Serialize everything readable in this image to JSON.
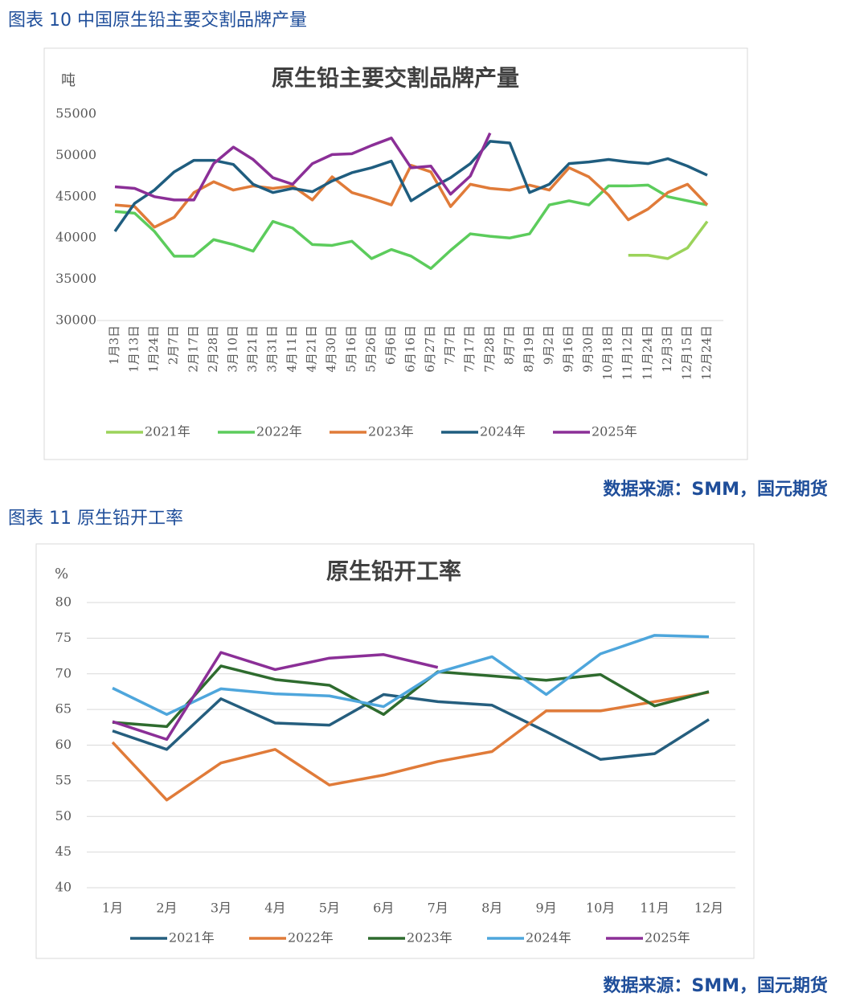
{
  "headings": [
    "图表 10 中国原生铅主要交割品牌产量",
    "图表 11 原生铅开工率"
  ],
  "sources": [
    "数据来源：SMM，国元期货",
    "数据来源：SMM，国元期货"
  ],
  "chart_data": [
    {
      "type": "line",
      "title": "原生铅主要交割品牌产量",
      "y_unit": "吨",
      "categories": [
        "1月3日",
        "1月13日",
        "1月24日",
        "2月7日",
        "2月17日",
        "2月28日",
        "3月10日",
        "3月21日",
        "3月31日",
        "4月11日",
        "4月21日",
        "4月30日",
        "5月16日",
        "5月26日",
        "6月6日",
        "6月16日",
        "6月27日",
        "7月7日",
        "7月17日",
        "7月28日",
        "8月7日",
        "8月19日",
        "9月2日",
        "9月16日",
        "9月30日",
        "10月18日",
        "11月12日",
        "11月24日",
        "12月3日",
        "12月15日",
        "12月24日"
      ],
      "series": [
        {
          "name": "2021年",
          "color": "#9bd35a",
          "values": [
            null,
            null,
            null,
            null,
            null,
            null,
            null,
            null,
            null,
            null,
            null,
            null,
            null,
            null,
            null,
            null,
            null,
            null,
            null,
            null,
            null,
            null,
            null,
            null,
            null,
            null,
            37900,
            37900,
            37500,
            38800,
            42000
          ]
        },
        {
          "name": "2022年",
          "color": "#5ccc5c",
          "values": [
            43200,
            43000,
            40800,
            37800,
            37800,
            39800,
            39200,
            38400,
            42000,
            41200,
            39200,
            39100,
            39600,
            37500,
            38600,
            37800,
            36300,
            38500,
            40500,
            40200,
            40000,
            40500,
            44000,
            44500,
            44000,
            46300,
            46300,
            46400,
            45000,
            44500,
            44000
          ]
        },
        {
          "name": "2023年",
          "color": "#e07b39",
          "values": [
            44000,
            43800,
            41300,
            42500,
            45500,
            46800,
            45800,
            46300,
            46000,
            46300,
            44600,
            47400,
            45500,
            44800,
            44000,
            48800,
            48000,
            43800,
            46500,
            46000,
            45800,
            46400,
            45800,
            48500,
            47400,
            45200,
            42200,
            43500,
            45500,
            46500,
            44000
          ]
        },
        {
          "name": "2024年",
          "color": "#1f5d7f",
          "values": [
            40800,
            44200,
            45800,
            48000,
            49400,
            49400,
            48900,
            46500,
            45500,
            46000,
            45600,
            46900,
            47900,
            48500,
            49300,
            44500,
            46000,
            47300,
            49000,
            51700,
            51500,
            45500,
            46500,
            49000,
            49200,
            49500,
            49200,
            49000,
            49600,
            48700,
            47600
          ]
        },
        {
          "name": "2025年",
          "color": "#8b2f97",
          "values": [
            46200,
            46000,
            45000,
            44600,
            44600,
            49000,
            51000,
            49500,
            47300,
            46500,
            49000,
            50100,
            50200,
            51200,
            52100,
            48500,
            48700,
            45300,
            47500,
            52700,
            null,
            null,
            null,
            null,
            null,
            null,
            null,
            null,
            null,
            null,
            null
          ]
        }
      ],
      "ylim": [
        30000,
        55000
      ],
      "yticks": [
        30000,
        35000,
        40000,
        45000,
        50000,
        55000
      ],
      "grid": false,
      "legend": "bottom"
    },
    {
      "type": "line",
      "title": "原生铅开工率",
      "y_unit": "%",
      "categories": [
        "1月",
        "2月",
        "3月",
        "4月",
        "5月",
        "6月",
        "7月",
        "8月",
        "9月",
        "10月",
        "11月",
        "12月"
      ],
      "series": [
        {
          "name": "2021年",
          "color": "#255e7e",
          "values": [
            62,
            59.4,
            66.5,
            63.1,
            62.8,
            67.1,
            66.1,
            65.6,
            61.9,
            58,
            58.8,
            63.6
          ]
        },
        {
          "name": "2022年",
          "color": "#e07b39",
          "values": [
            60.4,
            52.3,
            57.5,
            59.4,
            54.4,
            55.8,
            57.7,
            59.1,
            64.8,
            64.8,
            66.1,
            67.4
          ]
        },
        {
          "name": "2023年",
          "color": "#2e6b2e",
          "values": [
            63.2,
            62.6,
            71.1,
            69.2,
            68.4,
            64.3,
            70.3,
            69.7,
            69.1,
            69.9,
            65.5,
            67.5
          ]
        },
        {
          "name": "2024年",
          "color": "#4ea6dc",
          "values": [
            68,
            64.3,
            67.9,
            67.2,
            66.9,
            65.4,
            70.2,
            72.4,
            67.1,
            72.8,
            75.4,
            75.2
          ]
        },
        {
          "name": "2025年",
          "color": "#8b2f97",
          "values": [
            63.3,
            60.8,
            73,
            70.6,
            72.2,
            72.7,
            70.9,
            null,
            null,
            null,
            null,
            null
          ]
        }
      ],
      "ylim": [
        40,
        80
      ],
      "yticks": [
        40,
        45,
        50,
        55,
        60,
        65,
        70,
        75,
        80
      ],
      "grid": true,
      "legend": "bottom"
    }
  ]
}
